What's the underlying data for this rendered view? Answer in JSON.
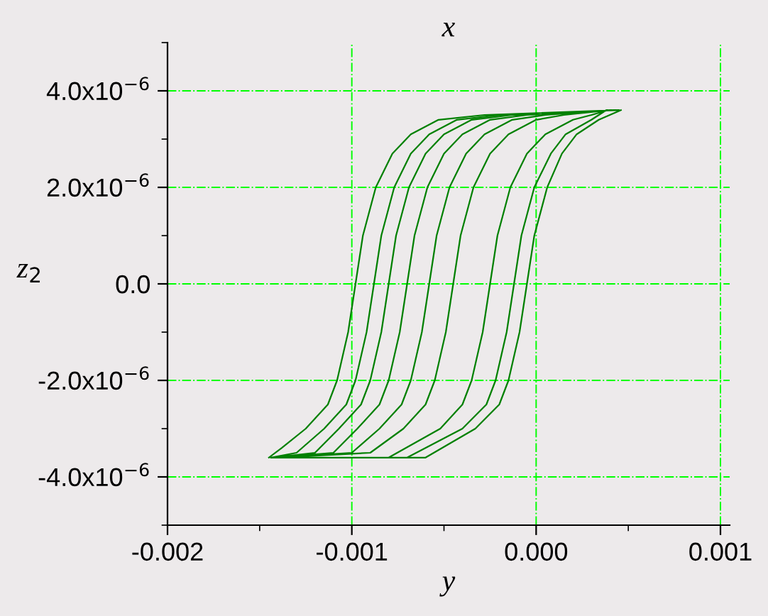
{
  "chart_data": {
    "type": "line",
    "title": "x",
    "xlabel": "y",
    "ylabel": "z$_{2}$",
    "xlim": [
      -0.002,
      0.00105
    ],
    "ylim": [
      -5e-06,
      5e-06
    ],
    "xticks": [
      {
        "value": -0.002,
        "label": "-0.002"
      },
      {
        "value": -0.001,
        "label": "-0.001"
      },
      {
        "value": 0,
        "label": "0.000"
      },
      {
        "value": 0.001,
        "label": "0.001"
      }
    ],
    "yticks": [
      {
        "value": -4e-06,
        "label": "-4.0x10$^{−6}$"
      },
      {
        "value": -2e-06,
        "label": "-2.0x10$^{−6}$"
      },
      {
        "value": 0,
        "label": "0.0"
      },
      {
        "value": 2e-06,
        "label": "2.0x10$^{−6}$"
      },
      {
        "value": 4e-06,
        "label": "4.0x10$^{−6}$"
      }
    ],
    "grid": true,
    "marker": "none",
    "line_style": "solid",
    "series": [
      {
        "color": "#008000",
        "x": [
          -0.00145,
          -0.00138,
          -0.00125,
          -0.00113,
          -0.00108,
          -0.00102,
          -0.00098,
          -0.00094,
          -0.00087,
          -0.00078,
          -0.00068,
          -0.00053,
          -0.00028,
          0.00045,
          0.00044,
          -0.0002,
          -0.00043,
          -0.00058,
          -0.00068,
          -0.00077,
          -0.00084,
          -0.00088,
          -0.00092,
          -0.00098,
          -0.00103,
          -0.00115,
          -0.0013,
          -0.00144,
          -0.00143,
          -0.0012,
          -0.00107,
          -0.00095,
          -0.0009,
          -0.00084,
          -0.0008,
          -0.00076,
          -0.00069,
          -0.0006,
          -0.0005,
          -0.00035,
          -0.00013,
          0.00043,
          0.00042,
          -5e-05,
          -0.00025,
          -0.0004,
          -0.0005,
          -0.00059,
          -0.00066,
          -0.0007,
          -0.00074,
          -0.0008,
          -0.00085,
          -0.00097,
          -0.0011,
          -0.00142,
          -0.00141,
          -0.001,
          -0.00085,
          -0.00073,
          -0.00068,
          -0.00062,
          -0.00058,
          -0.00054,
          -0.00047,
          -0.00038,
          -0.00028,
          -0.00013,
          5e-05,
          0.00041,
          0.0004,
          0.00015,
          0.0,
          -0.00015,
          -0.00025,
          -0.00034,
          -0.00041,
          -0.00045,
          -0.00049,
          -0.00055,
          -0.0006,
          -0.00072,
          -0.0009,
          -0.0014,
          -0.00139,
          -0.0008,
          -0.00052,
          -0.0004,
          -0.00035,
          -0.00029,
          -0.00025,
          -0.00021,
          -0.00014,
          -5e-05,
          5e-05,
          0.0002,
          0.0003,
          0.00039,
          0.00038,
          0.0003,
          0.00016,
          8e-05,
          -1e-05,
          -8e-05,
          -0.00012,
          -0.00016,
          -0.00022,
          -0.00027,
          -0.0004,
          -0.0007,
          -0.00138,
          -0.00137,
          -0.0006,
          -0.00033,
          -0.0002,
          -0.00015,
          -9e-05,
          -5e-05,
          -1e-05,
          6e-05,
          0.00014,
          0.00022,
          0.00034,
          0.00046
        ],
        "values": [
          -3.6e-06,
          -3.4e-06,
          -3e-06,
          -2.5e-06,
          -2e-06,
          -1e-06,
          0,
          1e-06,
          2e-06,
          2.7e-06,
          3.1e-06,
          3.4e-06,
          3.5e-06,
          3.6e-06,
          3.6e-06,
          3.5e-06,
          3.4e-06,
          3.1e-06,
          2.7e-06,
          2e-06,
          1e-06,
          0,
          -1e-06,
          -2e-06,
          -2.5e-06,
          -3e-06,
          -3.5e-06,
          -3.6e-06,
          -3.6e-06,
          -3.5e-06,
          -3e-06,
          -2.5e-06,
          -2e-06,
          -1e-06,
          0,
          1e-06,
          2e-06,
          2.7e-06,
          3.1e-06,
          3.4e-06,
          3.5e-06,
          3.6e-06,
          3.6e-06,
          3.5e-06,
          3.4e-06,
          3.1e-06,
          2.7e-06,
          2e-06,
          1e-06,
          0,
          -1e-06,
          -2e-06,
          -2.5e-06,
          -3e-06,
          -3.5e-06,
          -3.6e-06,
          -3.6e-06,
          -3.5e-06,
          -3e-06,
          -2.5e-06,
          -2e-06,
          -1e-06,
          0,
          1e-06,
          2e-06,
          2.7e-06,
          3.1e-06,
          3.4e-06,
          3.5e-06,
          3.6e-06,
          3.6e-06,
          3.5e-06,
          3.4e-06,
          3.1e-06,
          2.7e-06,
          2e-06,
          1e-06,
          0,
          -1e-06,
          -2e-06,
          -2.5e-06,
          -3e-06,
          -3.5e-06,
          -3.6e-06,
          -3.6e-06,
          -3.6e-06,
          -3e-06,
          -2.5e-06,
          -2e-06,
          -1e-06,
          0,
          1e-06,
          2e-06,
          2.7e-06,
          3.1e-06,
          3.4e-06,
          3.5e-06,
          3.6e-06,
          3.6e-06,
          3.4e-06,
          3.1e-06,
          2.7e-06,
          2e-06,
          1e-06,
          0,
          -1e-06,
          -2e-06,
          -2.5e-06,
          -3e-06,
          -3.6e-06,
          -3.6e-06,
          -3.6e-06,
          -3.6e-06,
          -3e-06,
          -2.5e-06,
          -2e-06,
          -1e-06,
          0,
          1e-06,
          2e-06,
          2.7e-06,
          3.1e-06,
          3.4e-06,
          3.6e-06
        ]
      }
    ]
  }
}
